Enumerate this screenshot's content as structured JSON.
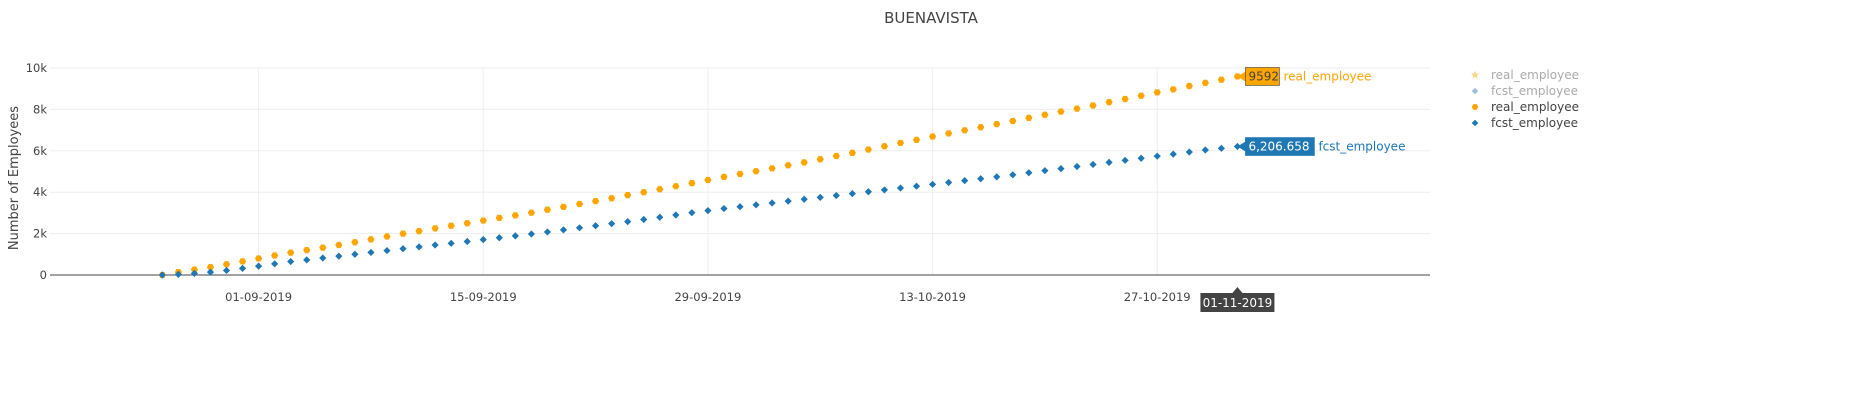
{
  "chart_data": {
    "type": "scatter",
    "title": "BUENAVISTA",
    "xlabel": "",
    "ylabel": "Number of Employees",
    "x_start": "2019-08-26",
    "x_end": "2019-11-01",
    "xlim": [
      "2019-08-19",
      "2019-11-13"
    ],
    "ylim": [
      0,
      10000
    ],
    "grid": true,
    "x_ticks": [
      "01-09-2019",
      "15-09-2019",
      "29-09-2019",
      "13-10-2019",
      "27-10-2019"
    ],
    "y_ticks": [
      "0",
      "2k",
      "4k",
      "6k",
      "8k",
      "10k"
    ],
    "series": [
      {
        "name": "real_employee",
        "marker": "star",
        "color": "#ffa500",
        "values": [
          0,
          140,
          260,
          380,
          520,
          660,
          800,
          940,
          1080,
          1200,
          1320,
          1450,
          1580,
          1720,
          1860,
          2000,
          2120,
          2250,
          2380,
          2500,
          2630,
          2760,
          2880,
          3010,
          3150,
          3290,
          3430,
          3570,
          3710,
          3860,
          4000,
          4140,
          4290,
          4440,
          4590,
          4740,
          4880,
          5010,
          5150,
          5300,
          5440,
          5590,
          5750,
          5900,
          6060,
          6220,
          6380,
          6530,
          6690,
          6840,
          6990,
          7140,
          7290,
          7440,
          7590,
          7740,
          7890,
          8040,
          8190,
          8350,
          8500,
          8660,
          8820,
          8970,
          9130,
          9280,
          9430,
          9592
        ]
      },
      {
        "name": "fcst_employee",
        "marker": "diamond",
        "color": "#1f77b4",
        "values": [
          0,
          30,
          80,
          140,
          220,
          320,
          430,
          540,
          650,
          730,
          820,
          910,
          1000,
          1090,
          1180,
          1270,
          1360,
          1450,
          1530,
          1620,
          1710,
          1800,
          1890,
          1980,
          2080,
          2180,
          2280,
          2380,
          2480,
          2580,
          2680,
          2790,
          2900,
          3010,
          3110,
          3210,
          3300,
          3390,
          3480,
          3570,
          3660,
          3750,
          3840,
          3930,
          4020,
          4110,
          4200,
          4290,
          4380,
          4470,
          4560,
          4650,
          4740,
          4840,
          4940,
          5040,
          5140,
          5240,
          5340,
          5440,
          5540,
          5640,
          5740,
          5840,
          5940,
          6040,
          6120,
          6206.658
        ]
      }
    ],
    "legend": {
      "position": "right",
      "entries": [
        {
          "label": "real_employee",
          "marker": "star",
          "color": "#ffa500",
          "faded": true
        },
        {
          "label": "fcst_employee",
          "marker": "diamond",
          "color": "#1f77b4",
          "faded": true
        },
        {
          "label": "real_employee",
          "marker": "hexagon",
          "color": "#ffa500",
          "faded": false
        },
        {
          "label": "fcst_employee",
          "marker": "diamond",
          "color": "#1f77b4",
          "faded": false
        }
      ]
    },
    "hover": {
      "x_label": "01-11-2019",
      "labels": [
        {
          "value": "9592",
          "series": "real_employee",
          "color": "#ffa500"
        },
        {
          "value": "6,206.658",
          "series": "fcst_employee",
          "color": "#1f77b4"
        }
      ]
    }
  }
}
